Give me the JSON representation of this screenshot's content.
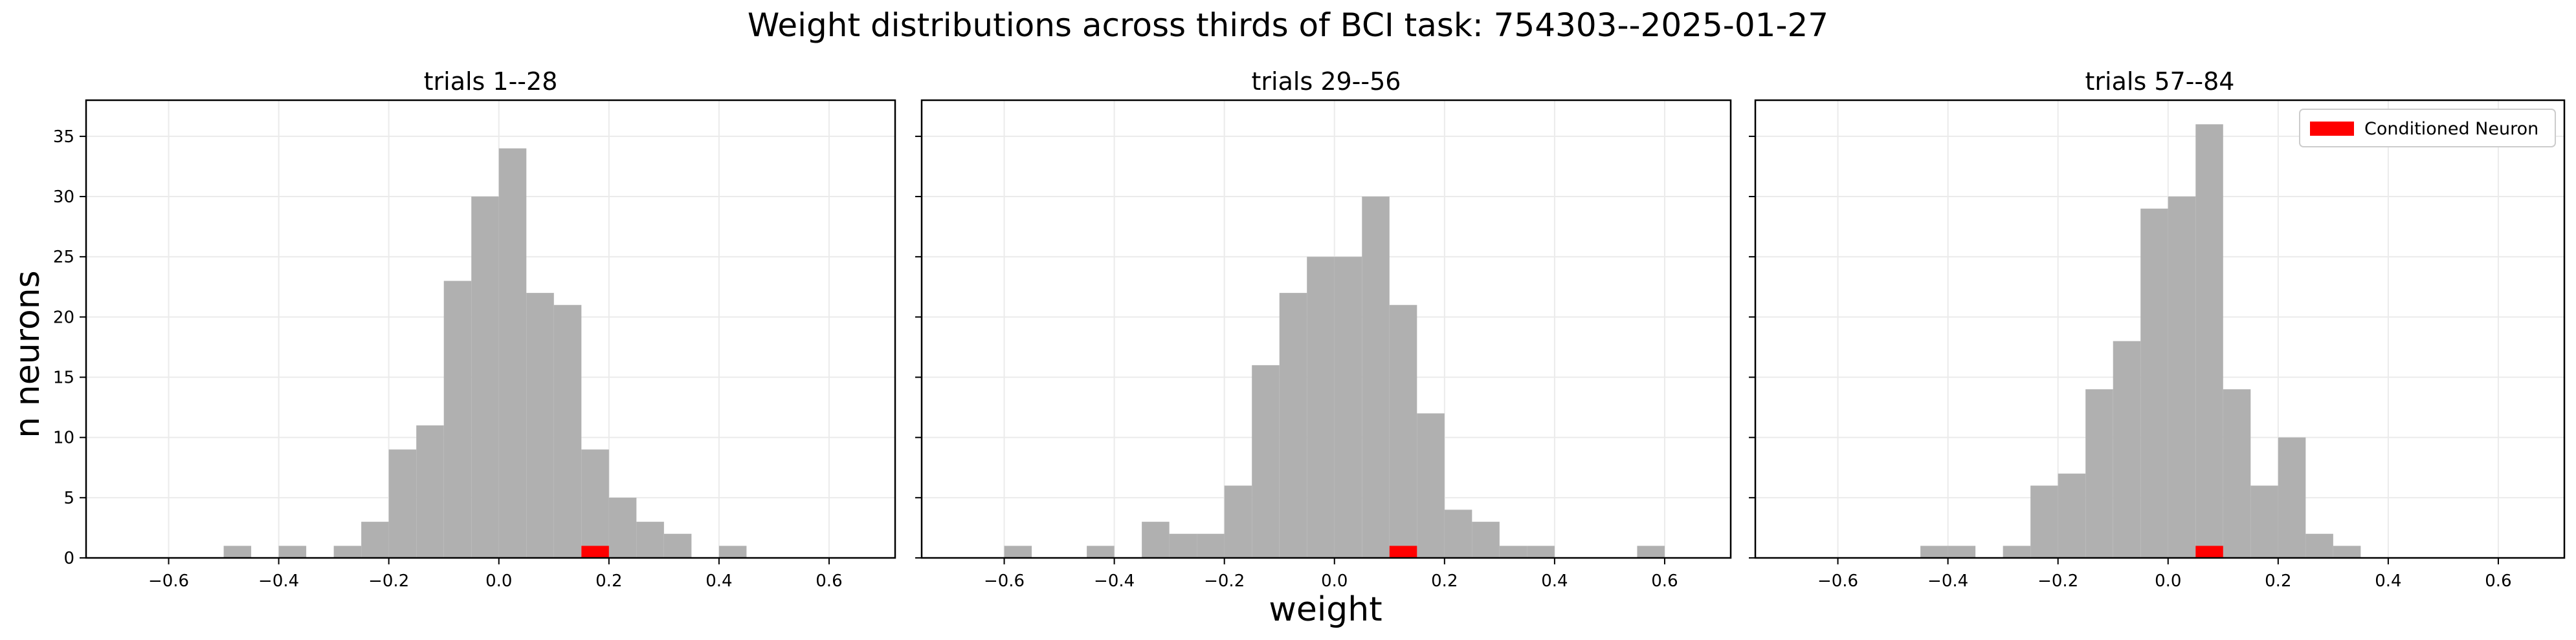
{
  "figure": {
    "title": "Weight distributions across thirds of BCI task: 754303--2025-01-27",
    "xlabel": "weight",
    "ylabel": "n neurons"
  },
  "colors": {
    "hist": "#b0b0b0",
    "conditioned": "#ff0000",
    "grid": "#ebebeb",
    "axes": "#000000"
  },
  "legend": {
    "label": "Conditioned Neuron",
    "placement": "upper right"
  },
  "chart_data": [
    {
      "type": "bar",
      "title": "trials 1--28",
      "xlim": [
        -0.75,
        0.72
      ],
      "ylim": [
        0,
        38
      ],
      "xticks": [
        -0.6,
        -0.4,
        -0.2,
        0.0,
        0.2,
        0.4,
        0.6
      ],
      "xtick_labels": [
        "−0.6",
        "−0.4",
        "−0.2",
        "0.0",
        "0.2",
        "0.4",
        "0.6"
      ],
      "yticks": [
        0,
        5,
        10,
        15,
        20,
        25,
        30,
        35
      ],
      "bin_width": 0.05,
      "bins": [
        {
          "left": -0.5,
          "count": 1
        },
        {
          "left": -0.4,
          "count": 1
        },
        {
          "left": -0.3,
          "count": 1
        },
        {
          "left": -0.25,
          "count": 3
        },
        {
          "left": -0.2,
          "count": 9
        },
        {
          "left": -0.15,
          "count": 11
        },
        {
          "left": -0.1,
          "count": 23
        },
        {
          "left": -0.05,
          "count": 30
        },
        {
          "left": 0.0,
          "count": 34
        },
        {
          "left": 0.05,
          "count": 22
        },
        {
          "left": 0.1,
          "count": 21
        },
        {
          "left": 0.15,
          "count": 9
        },
        {
          "left": 0.2,
          "count": 5
        },
        {
          "left": 0.25,
          "count": 3
        },
        {
          "left": 0.3,
          "count": 2
        },
        {
          "left": 0.4,
          "count": 1
        }
      ],
      "conditioned": {
        "left": 0.15,
        "count": 1
      },
      "show_legend": false
    },
    {
      "type": "bar",
      "title": "trials 29--56",
      "xlim": [
        -0.75,
        0.72
      ],
      "ylim": [
        0,
        38
      ],
      "xticks": [
        -0.6,
        -0.4,
        -0.2,
        0.0,
        0.2,
        0.4,
        0.6
      ],
      "xtick_labels": [
        "−0.6",
        "−0.4",
        "−0.2",
        "0.0",
        "0.2",
        "0.4",
        "0.6"
      ],
      "yticks": [
        0,
        5,
        10,
        15,
        20,
        25,
        30,
        35
      ],
      "bin_width": 0.05,
      "bins": [
        {
          "left": -0.6,
          "count": 1
        },
        {
          "left": -0.45,
          "count": 1
        },
        {
          "left": -0.35,
          "count": 3
        },
        {
          "left": -0.3,
          "count": 2
        },
        {
          "left": -0.25,
          "count": 2
        },
        {
          "left": -0.2,
          "count": 6
        },
        {
          "left": -0.15,
          "count": 16
        },
        {
          "left": -0.1,
          "count": 22
        },
        {
          "left": -0.05,
          "count": 25
        },
        {
          "left": 0.0,
          "count": 25
        },
        {
          "left": 0.05,
          "count": 30
        },
        {
          "left": 0.1,
          "count": 21
        },
        {
          "left": 0.15,
          "count": 12
        },
        {
          "left": 0.2,
          "count": 4
        },
        {
          "left": 0.25,
          "count": 3
        },
        {
          "left": 0.3,
          "count": 1
        },
        {
          "left": 0.35,
          "count": 1
        },
        {
          "left": 0.55,
          "count": 1
        }
      ],
      "conditioned": {
        "left": 0.1,
        "count": 1
      },
      "show_legend": false
    },
    {
      "type": "bar",
      "title": "trials 57--84",
      "xlim": [
        -0.75,
        0.72
      ],
      "ylim": [
        0,
        38
      ],
      "xticks": [
        -0.6,
        -0.4,
        -0.2,
        0.0,
        0.2,
        0.4,
        0.6
      ],
      "xtick_labels": [
        "−0.6",
        "−0.4",
        "−0.2",
        "0.0",
        "0.2",
        "0.4",
        "0.6"
      ],
      "yticks": [
        0,
        5,
        10,
        15,
        20,
        25,
        30,
        35
      ],
      "bin_width": 0.05,
      "bins": [
        {
          "left": -0.45,
          "count": 1
        },
        {
          "left": -0.4,
          "count": 1
        },
        {
          "left": -0.3,
          "count": 1
        },
        {
          "left": -0.25,
          "count": 6
        },
        {
          "left": -0.2,
          "count": 7
        },
        {
          "left": -0.15,
          "count": 14
        },
        {
          "left": -0.1,
          "count": 18
        },
        {
          "left": -0.05,
          "count": 29
        },
        {
          "left": 0.0,
          "count": 30
        },
        {
          "left": 0.05,
          "count": 36
        },
        {
          "left": 0.1,
          "count": 14
        },
        {
          "left": 0.15,
          "count": 6
        },
        {
          "left": 0.2,
          "count": 10
        },
        {
          "left": 0.25,
          "count": 2
        },
        {
          "left": 0.3,
          "count": 1
        }
      ],
      "conditioned": {
        "left": 0.05,
        "count": 1
      },
      "show_legend": true
    }
  ]
}
